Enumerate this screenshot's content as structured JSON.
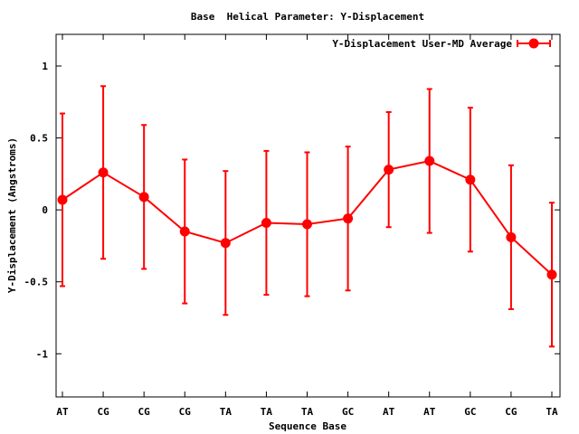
{
  "chart_data": {
    "type": "line",
    "title": "Base  Helical Parameter: Y-Displacement",
    "xlabel": "Sequence Base",
    "ylabel": "Y-Displacement (Angstroms)",
    "categories": [
      "AT",
      "CG",
      "CG",
      "CG",
      "TA",
      "TA",
      "TA",
      "GC",
      "AT",
      "AT",
      "GC",
      "CG",
      "TA"
    ],
    "ylim": [
      -1.3,
      1.22
    ],
    "yticks": [
      -1,
      -0.5,
      0,
      0.5,
      1
    ],
    "ytick_labels": [
      "-1",
      "-0.5",
      "0",
      "0.5",
      "1"
    ],
    "grid": false,
    "legend_position": "top-right",
    "series": [
      {
        "name": "Y-Displacement User-MD Average",
        "color": "#ff0000",
        "values": [
          0.07,
          0.26,
          0.09,
          -0.15,
          -0.23,
          -0.09,
          -0.1,
          -0.06,
          0.28,
          0.34,
          0.21,
          -0.19,
          -0.45
        ],
        "errors": [
          0.6,
          0.6,
          0.5,
          0.5,
          0.5,
          0.5,
          0.5,
          0.5,
          0.4,
          0.5,
          0.5,
          0.5,
          0.5
        ]
      }
    ]
  }
}
